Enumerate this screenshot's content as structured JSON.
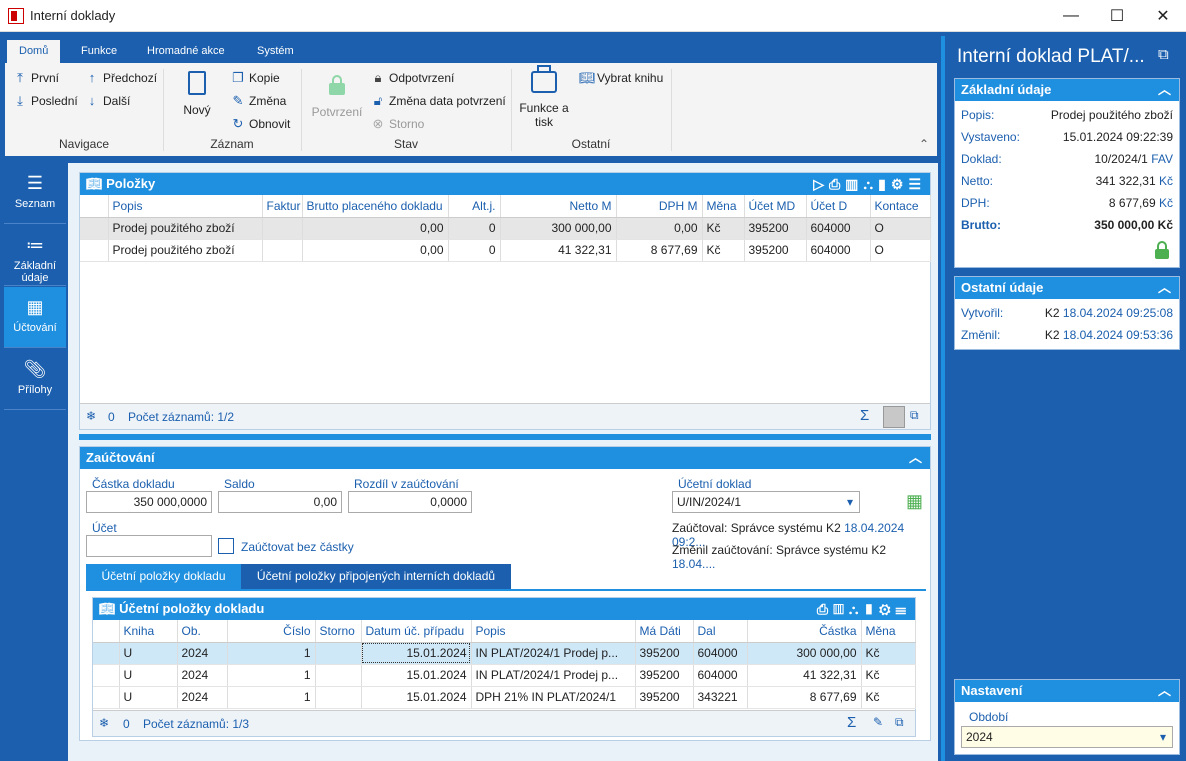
{
  "window": {
    "title": "Interní doklady",
    "min": "—",
    "max": "☐",
    "close": "✕"
  },
  "ribbon": {
    "tabs": [
      "Domů",
      "Funkce",
      "Hromadné akce",
      "Systém"
    ],
    "nav": {
      "first": "První",
      "last": "Poslední",
      "prev": "Předchozí",
      "next": "Další",
      "group": "Navigace"
    },
    "record": {
      "new": "Nový",
      "copy": "Kopie",
      "change": "Změna",
      "refresh": "Obnovit",
      "group": "Záznam"
    },
    "state": {
      "confirm": "Potvrzení",
      "unconfirm": "Odpotvrzení",
      "change_date": "Změna data potvrzení",
      "storno": "Storno",
      "group": "Stav"
    },
    "other": {
      "print": "Funkce a tisk",
      "book": "Vybrat knihu",
      "group": "Ostatní"
    }
  },
  "leftnav": [
    {
      "label": "Seznam",
      "icon": "list-icon"
    },
    {
      "label": "Základní údaje",
      "icon": "details-icon"
    },
    {
      "label": "Účtování",
      "icon": "calculator-icon"
    },
    {
      "label": "Přílohy",
      "icon": "paperclip-icon"
    }
  ],
  "items": {
    "title": "Položky",
    "columns": [
      "Popis",
      "Faktur",
      "Brutto placeného dokladu",
      "Alt.j.",
      "Netto M",
      "DPH M",
      "Měna",
      "Účet MD",
      "Účet D",
      "Kontace"
    ],
    "rows": [
      [
        "Prodej použitého zboží",
        "",
        "0,00",
        "0",
        "300 000,00",
        "0,00",
        "Kč",
        "395200",
        "604000",
        "O"
      ],
      [
        "Prodej použitého zboží",
        "",
        "0,00",
        "0",
        "41 322,31",
        "8 677,69",
        "Kč",
        "395200",
        "604000",
        "O"
      ]
    ],
    "footer_count": "0",
    "footer_records": "Počet záznamů: 1/2"
  },
  "posting": {
    "title": "Zaúčtování",
    "amount_label": "Částka dokladu",
    "amount": "350 000,0000",
    "saldo_label": "Saldo",
    "saldo": "0,00",
    "diff_label": "Rozdíl v zaúčtování",
    "diff": "0,0000",
    "account_label": "Účet",
    "account": "",
    "nosum_label": "Zaúčtovat bez částky",
    "doc_label": "Účetní doklad",
    "doc": "U/IN/2024/1",
    "posted_by": "Zaúčtoval: Správce systému K2",
    "posted_date": "18.04.2024 09:2...",
    "changed_by": "Změnil zaúčtování: Správce systému K2",
    "changed_date": "18.04...."
  },
  "subtabs": [
    "Účetní položky dokladu",
    "Účetní položky připojených interních dokladů"
  ],
  "ledger": {
    "title": "Účetní položky dokladu",
    "columns": [
      "Kniha",
      "Ob.",
      "Číslo",
      "Storno",
      "Datum úč. případu",
      "Popis",
      "Má Dáti",
      "Dal",
      "Částka",
      "Měna"
    ],
    "rows": [
      [
        "U",
        "2024",
        "1",
        "",
        "15.01.2024",
        "IN PLAT/2024/1 Prodej p...",
        "395200",
        "604000",
        "300 000,00",
        "Kč"
      ],
      [
        "U",
        "2024",
        "1",
        "",
        "15.01.2024",
        "IN PLAT/2024/1 Prodej p...",
        "395200",
        "604000",
        "41 322,31",
        "Kč"
      ],
      [
        "U",
        "2024",
        "1",
        "",
        "15.01.2024",
        "DPH 21% IN PLAT/2024/1",
        "395200",
        "343221",
        "8 677,69",
        "Kč"
      ]
    ],
    "footer_count": "0",
    "footer_records": "Počet záznamů: 1/3"
  },
  "right": {
    "title": "Interní doklad PLAT/...",
    "basic_title": "Základní údaje",
    "popis_k": "Popis:",
    "popis_v": "Prodej použitého zboží",
    "vyst_k": "Vystaveno:",
    "vyst_v": "15.01.2024 09:22:39",
    "doklad_k": "Doklad:",
    "doklad_v": "10/2024/1",
    "doklad_v2": "FAV",
    "netto_k": "Netto:",
    "netto_v": "341 322,31",
    "netto_c": "Kč",
    "dph_k": "DPH:",
    "dph_v": "8 677,69",
    "dph_c": "Kč",
    "brutto_k": "Brutto:",
    "brutto_v": "350 000,00 Kč",
    "other_title": "Ostatní údaje",
    "created_k": "Vytvořil:",
    "created_u": "K2",
    "created_d": "18.04.2024 09:25:08",
    "changed_k": "Změnil:",
    "changed_u": "K2",
    "changed_d": "18.04.2024 09:53:36",
    "settings_title": "Nastavení",
    "period_label": "Období",
    "period": "2024"
  }
}
